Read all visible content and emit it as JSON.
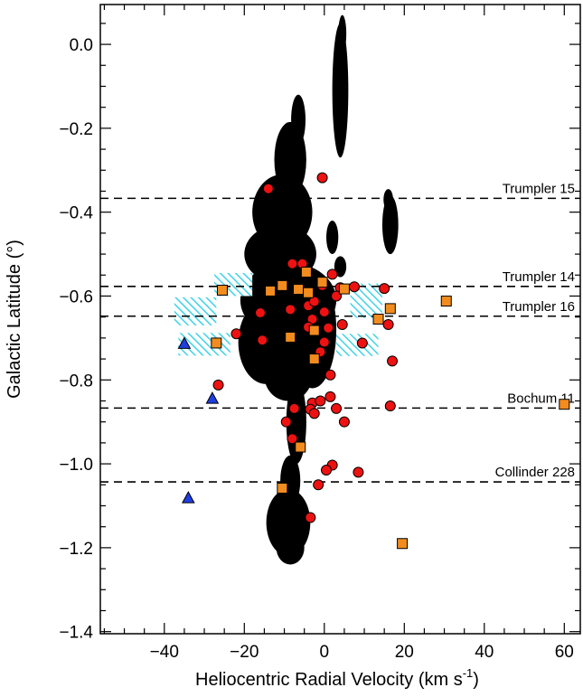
{
  "chart_data": {
    "type": "scatter",
    "xlabel": "Heliocentric Radial Velocity (km s",
    "xlabel_sup": "-1",
    "xlabel_close": ")",
    "ylabel": "Galactic Latitude (°)",
    "xlim": [
      -56,
      64
    ],
    "ylim": [
      -1.405,
      0.095
    ],
    "x_ticks": [
      -40,
      -20,
      0,
      20,
      40,
      60
    ],
    "y_ticks": [
      0.0,
      -0.2,
      -0.4,
      -0.6,
      -0.8,
      -1.0,
      -1.2,
      -1.4
    ],
    "x_tick_labels": [
      "−40",
      "−20",
      "0",
      "20",
      "40",
      "60"
    ],
    "y_tick_labels": [
      "0.0",
      "−0.2",
      "−0.4",
      "−0.6",
      "−0.8",
      "−1.0",
      "−1.2",
      "−1.4"
    ],
    "clusters": [
      {
        "name": "Trumpler 15",
        "b": -0.367
      },
      {
        "name": "Trumpler 14",
        "b": -0.577
      },
      {
        "name": "Trumpler 16",
        "b": -0.648
      },
      {
        "name": "Bochum 11",
        "b": -0.867
      },
      {
        "name": "Collinder 228",
        "b": -1.043
      }
    ],
    "hatched_regions": [
      {
        "x": [
          -27.5,
          -18
        ],
        "y": [
          -0.6,
          -0.545
        ]
      },
      {
        "x": [
          -37.5,
          -27
        ],
        "y": [
          -0.67,
          -0.603
        ]
      },
      {
        "x": [
          -36.5,
          -23.5
        ],
        "y": [
          -0.742,
          -0.688
        ]
      },
      {
        "x": [
          6.5,
          14.5
        ],
        "y": [
          -0.652,
          -0.57
        ]
      },
      {
        "x": [
          3,
          13.5
        ],
        "y": [
          -0.743,
          -0.69
        ]
      }
    ],
    "series": [
      {
        "marker": "circle",
        "color": "#ee1111",
        "points": [
          [
            -14,
            -0.344
          ],
          [
            -0.5,
            -0.318
          ],
          [
            -5.5,
            -0.523
          ],
          [
            -8,
            -0.523
          ],
          [
            2,
            -0.548
          ],
          [
            -0.5,
            -0.575
          ],
          [
            4,
            -0.58
          ],
          [
            7.5,
            -0.578
          ],
          [
            15,
            -0.582
          ],
          [
            3,
            -0.6
          ],
          [
            -4,
            -0.623
          ],
          [
            -2.5,
            -0.613
          ],
          [
            -8.5,
            -0.632
          ],
          [
            0,
            -0.638
          ],
          [
            -16,
            -0.64
          ],
          [
            -3,
            -0.655
          ],
          [
            -4,
            -0.674
          ],
          [
            1,
            -0.676
          ],
          [
            4.5,
            -0.668
          ],
          [
            16,
            -0.668
          ],
          [
            -22,
            -0.69
          ],
          [
            -15.5,
            -0.705
          ],
          [
            0,
            -0.71
          ],
          [
            9.5,
            -0.712
          ],
          [
            -1,
            -0.733
          ],
          [
            17,
            -0.755
          ],
          [
            1.5,
            -0.788
          ],
          [
            -26.5,
            -0.812
          ],
          [
            1.5,
            -0.84
          ],
          [
            -3,
            -0.855
          ],
          [
            -1,
            -0.85
          ],
          [
            -7.5,
            -0.868
          ],
          [
            3,
            -0.868
          ],
          [
            -3.5,
            -0.87
          ],
          [
            16.5,
            -0.862
          ],
          [
            -2.5,
            -0.88
          ],
          [
            -9.5,
            -0.9
          ],
          [
            5,
            -0.9
          ],
          [
            -8,
            -0.94
          ],
          [
            2,
            -1.003
          ],
          [
            0.5,
            -1.015
          ],
          [
            8.5,
            -1.02
          ],
          [
            -1.5,
            -1.05
          ],
          [
            -3.5,
            -1.128
          ]
        ]
      },
      {
        "marker": "square",
        "color": "#f28c1e",
        "points": [
          [
            -4.5,
            -0.543
          ],
          [
            -25.5,
            -0.586
          ],
          [
            -13.5,
            -0.588
          ],
          [
            -10.5,
            -0.575
          ],
          [
            -6.5,
            -0.584
          ],
          [
            -4,
            -0.592
          ],
          [
            -0.5,
            -0.567
          ],
          [
            5,
            -0.583
          ],
          [
            16.5,
            -0.63
          ],
          [
            30.5,
            -0.612
          ],
          [
            13.5,
            -0.655
          ],
          [
            -2.5,
            -0.682
          ],
          [
            -8.5,
            -0.698
          ],
          [
            -27,
            -0.712
          ],
          [
            -2.5,
            -0.75
          ],
          [
            -6,
            -0.96
          ],
          [
            -10.5,
            -1.058
          ],
          [
            19.5,
            -1.19
          ],
          [
            60,
            -0.858
          ]
        ]
      },
      {
        "marker": "triangle",
        "color": "#1f3ee0",
        "points": [
          [
            -35,
            -0.714
          ],
          [
            -28,
            -0.845
          ],
          [
            -34,
            -1.082
          ]
        ]
      }
    ],
    "emission_blobs": [
      {
        "cx": 4,
        "cy": -0.11,
        "rx": 2,
        "ry": 0.16
      },
      {
        "cx": 4.5,
        "cy": 0.025,
        "rx": 1,
        "ry": 0.045
      },
      {
        "cx": -6.5,
        "cy": -0.18,
        "rx": 1.8,
        "ry": 0.06
      },
      {
        "cx": -8.5,
        "cy": -0.275,
        "rx": 4,
        "ry": 0.09
      },
      {
        "cx": -10.5,
        "cy": -0.4,
        "rx": 7.5,
        "ry": 0.09
      },
      {
        "cx": -11,
        "cy": -0.5,
        "rx": 9,
        "ry": 0.07
      },
      {
        "cx": -9,
        "cy": -0.61,
        "rx": 12,
        "ry": 0.09
      },
      {
        "cx": -14.5,
        "cy": -0.71,
        "rx": 7,
        "ry": 0.1
      },
      {
        "cx": -3,
        "cy": -0.68,
        "rx": 6,
        "ry": 0.14
      },
      {
        "cx": -9,
        "cy": -0.79,
        "rx": 6,
        "ry": 0.06
      },
      {
        "cx": -7,
        "cy": -0.9,
        "rx": 2.5,
        "ry": 0.1
      },
      {
        "cx": -8.5,
        "cy": -1.04,
        "rx": 2.5,
        "ry": 0.06
      },
      {
        "cx": -9,
        "cy": -1.14,
        "rx": 5.5,
        "ry": 0.08
      },
      {
        "cx": -8.5,
        "cy": -1.2,
        "rx": 3.5,
        "ry": 0.04
      },
      {
        "cx": 16.5,
        "cy": -0.43,
        "rx": 2,
        "ry": 0.07
      },
      {
        "cx": 16,
        "cy": -0.37,
        "rx": 1.2,
        "ry": 0.025
      },
      {
        "cx": 2,
        "cy": -0.46,
        "rx": 1.5,
        "ry": 0.04
      },
      {
        "cx": 4,
        "cy": -0.53,
        "rx": 1.5,
        "ry": 0.025
      }
    ]
  }
}
